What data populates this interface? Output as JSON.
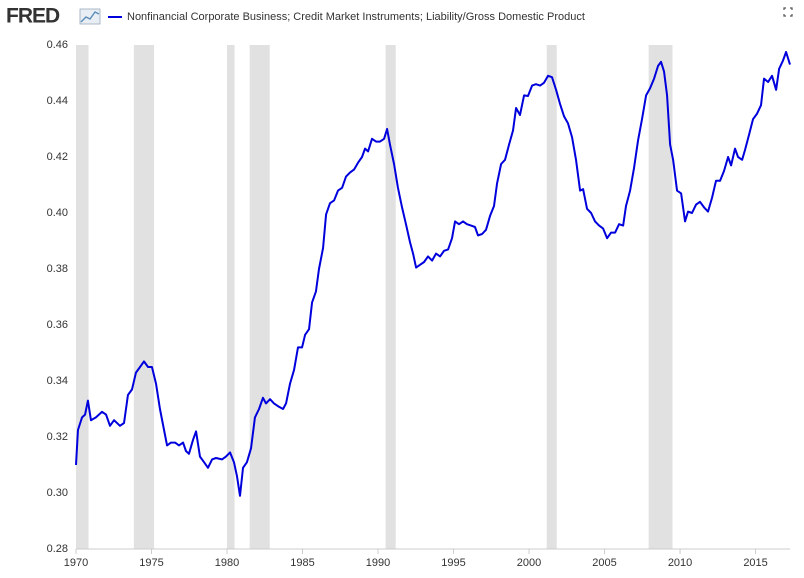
{
  "brand": "FRED",
  "chart_data": {
    "type": "line",
    "series": [
      {
        "name": "Nonfinancial Corporate Business; Credit Market Instruments; Liability/Gross Domestic Product",
        "color": "#0000dd",
        "x": [
          1970.0,
          1970.13,
          1970.4,
          1970.6,
          1970.79,
          1970.99,
          1971.32,
          1971.72,
          1971.99,
          1972.25,
          1972.52,
          1972.91,
          1973.18,
          1973.44,
          1973.71,
          1973.97,
          1974.24,
          1974.5,
          1974.77,
          1975.03,
          1975.3,
          1975.56,
          1975.83,
          1976.03,
          1976.29,
          1976.56,
          1976.82,
          1977.09,
          1977.28,
          1977.48,
          1977.75,
          1977.95,
          1978.21,
          1978.48,
          1978.74,
          1979.01,
          1979.27,
          1979.67,
          1979.93,
          1980.2,
          1980.46,
          1980.66,
          1980.86,
          1981.06,
          1981.32,
          1981.59,
          1981.85,
          1982.12,
          1982.38,
          1982.58,
          1982.85,
          1983.11,
          1983.38,
          1983.71,
          1983.91,
          1984.17,
          1984.44,
          1984.7,
          1984.97,
          1985.17,
          1985.43,
          1985.63,
          1985.89,
          1986.09,
          1986.36,
          1986.56,
          1986.82,
          1987.09,
          1987.35,
          1987.62,
          1987.88,
          1988.15,
          1988.41,
          1988.68,
          1988.94,
          1989.14,
          1989.34,
          1989.6,
          1989.87,
          1990.13,
          1990.4,
          1990.6,
          1990.79,
          1991.06,
          1991.32,
          1991.59,
          1991.85,
          1992.12,
          1992.32,
          1992.52,
          1992.78,
          1993.05,
          1993.31,
          1993.58,
          1993.84,
          1994.11,
          1994.37,
          1994.64,
          1994.9,
          1995.1,
          1995.36,
          1995.63,
          1995.89,
          1996.16,
          1996.42,
          1996.62,
          1996.89,
          1997.15,
          1997.42,
          1997.68,
          1997.88,
          1998.15,
          1998.41,
          1998.68,
          1998.94,
          1999.14,
          1999.4,
          1999.67,
          1999.93,
          2000.2,
          2000.46,
          2000.73,
          2000.99,
          2001.26,
          2001.52,
          2001.79,
          2002.05,
          2002.32,
          2002.58,
          2002.85,
          2003.11,
          2003.38,
          2003.58,
          2003.84,
          2004.11,
          2004.37,
          2004.64,
          2004.9,
          2005.17,
          2005.43,
          2005.7,
          2005.96,
          2006.23,
          2006.42,
          2006.69,
          2006.95,
          2007.22,
          2007.48,
          2007.75,
          2008.01,
          2008.28,
          2008.54,
          2008.74,
          2008.94,
          2009.14,
          2009.34,
          2009.54,
          2009.8,
          2010.07,
          2010.33,
          2010.53,
          2010.79,
          2011.06,
          2011.32,
          2011.59,
          2011.85,
          2012.12,
          2012.38,
          2012.65,
          2012.91,
          2013.18,
          2013.38,
          2013.64,
          2013.84,
          2014.11,
          2014.3,
          2014.57,
          2014.83,
          2015.1,
          2015.36,
          2015.56,
          2015.83,
          2016.09,
          2016.36,
          2016.56,
          2016.82,
          2017.02,
          2017.28
        ],
        "values": [
          0.31,
          0.3225,
          0.327,
          0.328,
          0.333,
          0.326,
          0.327,
          0.329,
          0.328,
          0.324,
          0.326,
          0.324,
          0.325,
          0.335,
          0.337,
          0.343,
          0.345,
          0.347,
          0.345,
          0.345,
          0.339,
          0.33,
          0.3225,
          0.317,
          0.318,
          0.318,
          0.317,
          0.318,
          0.315,
          0.314,
          0.319,
          0.322,
          0.313,
          0.311,
          0.309,
          0.312,
          0.3125,
          0.312,
          0.313,
          0.3145,
          0.311,
          0.306,
          0.299,
          0.309,
          0.311,
          0.316,
          0.327,
          0.33,
          0.334,
          0.332,
          0.3335,
          0.332,
          0.331,
          0.33,
          0.332,
          0.339,
          0.344,
          0.352,
          0.352,
          0.3565,
          0.3585,
          0.368,
          0.372,
          0.38,
          0.3875,
          0.3995,
          0.4035,
          0.4045,
          0.408,
          0.409,
          0.413,
          0.4145,
          0.4155,
          0.418,
          0.42,
          0.423,
          0.422,
          0.4265,
          0.4255,
          0.4255,
          0.4265,
          0.43,
          0.4245,
          0.4175,
          0.409,
          0.402,
          0.396,
          0.3895,
          0.3855,
          0.3805,
          0.3815,
          0.3825,
          0.3845,
          0.383,
          0.3855,
          0.3845,
          0.3865,
          0.387,
          0.391,
          0.397,
          0.396,
          0.397,
          0.396,
          0.3955,
          0.395,
          0.392,
          0.3925,
          0.394,
          0.399,
          0.4025,
          0.4105,
          0.4175,
          0.419,
          0.4245,
          0.4295,
          0.4375,
          0.435,
          0.442,
          0.4418,
          0.4455,
          0.446,
          0.4455,
          0.4465,
          0.449,
          0.4485,
          0.444,
          0.439,
          0.4345,
          0.432,
          0.427,
          0.419,
          0.408,
          0.4085,
          0.4015,
          0.4,
          0.397,
          0.3955,
          0.3945,
          0.391,
          0.393,
          0.393,
          0.396,
          0.3955,
          0.4025,
          0.408,
          0.416,
          0.426,
          0.4335,
          0.442,
          0.4445,
          0.448,
          0.4525,
          0.454,
          0.4505,
          0.442,
          0.4245,
          0.419,
          0.408,
          0.407,
          0.397,
          0.4005,
          0.4,
          0.403,
          0.404,
          0.402,
          0.4005,
          0.4055,
          0.4115,
          0.4115,
          0.415,
          0.42,
          0.417,
          0.423,
          0.42,
          0.419,
          0.4225,
          0.428,
          0.4335,
          0.4355,
          0.4385,
          0.448,
          0.4468,
          0.449,
          0.444,
          0.4515,
          0.4545,
          0.4575,
          0.453
        ]
      }
    ],
    "recessions": [
      [
        1969.92,
        1970.83
      ],
      [
        1973.83,
        1975.17
      ],
      [
        1980.0,
        1980.5
      ],
      [
        1981.5,
        1982.83
      ],
      [
        1990.5,
        1991.17
      ],
      [
        2001.17,
        2001.83
      ],
      [
        2007.92,
        2009.5
      ]
    ],
    "recession_color": "#e1e1e1",
    "xlim": [
      1970,
      2017.28
    ],
    "xticks": [
      1970,
      1975,
      1980,
      1985,
      1990,
      1995,
      2000,
      2005,
      2010,
      2015
    ],
    "ylim": [
      0.28,
      0.46
    ],
    "yticks": [
      0.28,
      {
        "value": 0.3,
        "label": "0.30"
      },
      0.32,
      0.34,
      0.36,
      0.38,
      {
        "value": 0.4,
        "label": "0.40"
      },
      0.42,
      0.44,
      0.46
    ]
  }
}
